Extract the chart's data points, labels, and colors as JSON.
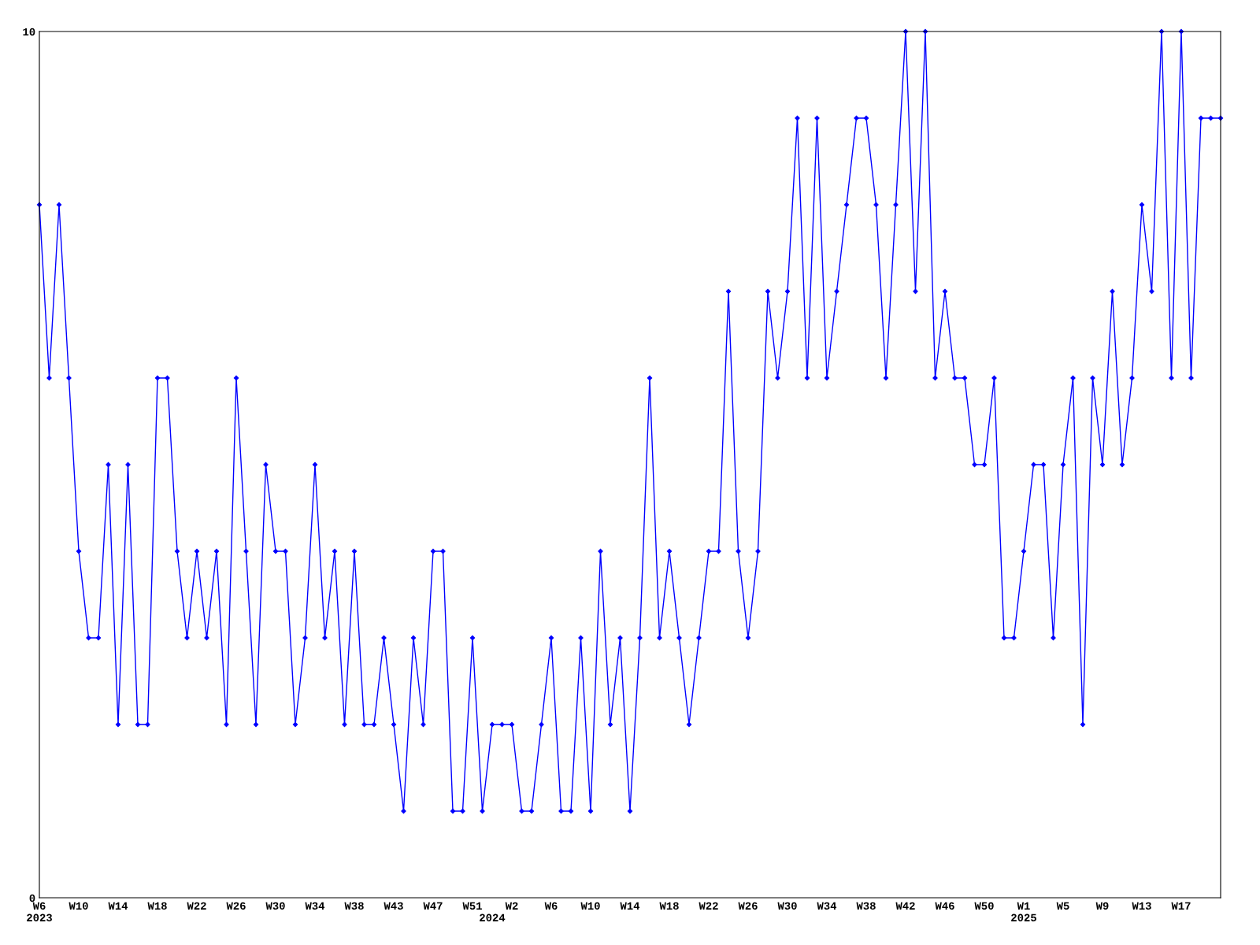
{
  "chart_data": {
    "type": "line",
    "categories": [
      "W6\n2023",
      null,
      null,
      null,
      "W10",
      null,
      null,
      null,
      "W14",
      null,
      null,
      null,
      "W18",
      null,
      null,
      null,
      "W22",
      null,
      null,
      null,
      "W26",
      null,
      null,
      null,
      "W30",
      null,
      null,
      null,
      "W34",
      null,
      null,
      null,
      "W38",
      null,
      null,
      null,
      "W43",
      null,
      null,
      null,
      "W47",
      null,
      null,
      null,
      "W51",
      null,
      "\n2024",
      null,
      "W2",
      null,
      null,
      null,
      "W6",
      null,
      null,
      null,
      "W10",
      null,
      null,
      null,
      "W14",
      null,
      null,
      null,
      "W18",
      null,
      null,
      null,
      "W22",
      null,
      null,
      null,
      "W26",
      null,
      null,
      null,
      "W30",
      null,
      null,
      null,
      "W34",
      null,
      null,
      null,
      "W38",
      null,
      null,
      null,
      "W42",
      null,
      null,
      null,
      "W46",
      null,
      null,
      null,
      "W50",
      null,
      null,
      null,
      "W1\n2025",
      null,
      null,
      null,
      "W5",
      null,
      null,
      null,
      "W9",
      null,
      null,
      null,
      "W13",
      null,
      null,
      null,
      "W17",
      null,
      null,
      null,
      null
    ],
    "series": [
      {
        "color": "#0000ff",
        "values": [
          8,
          6,
          8,
          6,
          4,
          3,
          3,
          5,
          2,
          5,
          2,
          2,
          6,
          6,
          4,
          3,
          4,
          3,
          4,
          2,
          6,
          4,
          2,
          5,
          4,
          4,
          2,
          3,
          5,
          3,
          4,
          2,
          4,
          2,
          2,
          3,
          2,
          1,
          3,
          2,
          4,
          4,
          1,
          1,
          3,
          1,
          2,
          2,
          2,
          1,
          1,
          2,
          3,
          1,
          1,
          3,
          1,
          4,
          2,
          3,
          1,
          3,
          6,
          3,
          4,
          3,
          2,
          3,
          4,
          4,
          7,
          4,
          3,
          4,
          7,
          6,
          7,
          9,
          6,
          9,
          6,
          7,
          8,
          9,
          9,
          8,
          6,
          8,
          10,
          7,
          10,
          6,
          7,
          6,
          6,
          5,
          5,
          6,
          3,
          3,
          4,
          5,
          5,
          3,
          5,
          6,
          2,
          6,
          5,
          7,
          5,
          6,
          8,
          7,
          10,
          6,
          10,
          6,
          9,
          9,
          9
        ]
      }
    ],
    "ylim": [
      0,
      10
    ],
    "yticks": [
      0,
      10
    ],
    "grid": false,
    "marker": "diamond",
    "line_style": "solid"
  }
}
